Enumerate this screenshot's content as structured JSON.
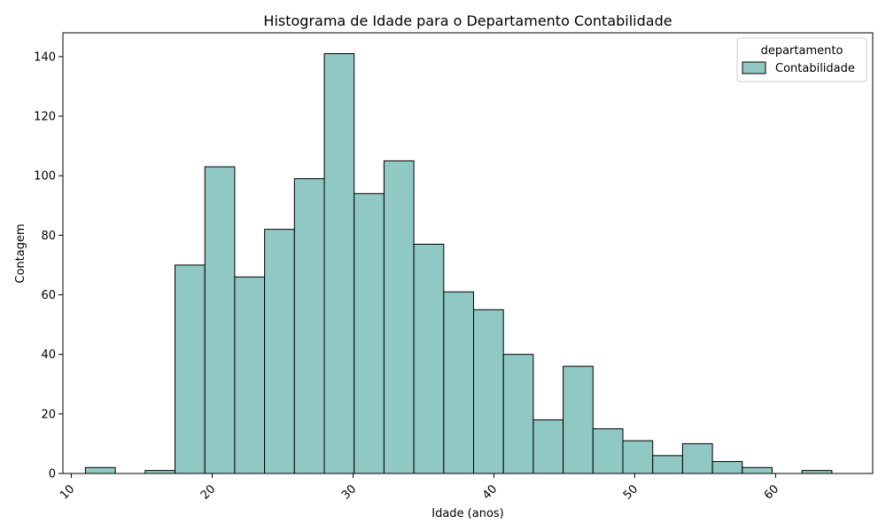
{
  "chart_data": {
    "type": "bar",
    "title": "Histograma de Idade para o Departamento Contabilidade",
    "xlabel": "Idade (anos)",
    "ylabel": "Contagem",
    "xlim": [
      9.4,
      66.9
    ],
    "ylim": [
      0,
      148
    ],
    "x_ticks": [
      10,
      20,
      30,
      40,
      50,
      60
    ],
    "y_ticks": [
      0,
      20,
      40,
      60,
      80,
      100,
      120,
      140
    ],
    "x_tick_rotation": 45,
    "grid": false,
    "legend": {
      "title": "departamento",
      "entries": [
        "Contabilidade"
      ],
      "position": "top-right"
    },
    "colors": {
      "bar_fill": "#90c8c4",
      "bar_edge": "#000000",
      "axis": "#000000"
    },
    "bins": [
      {
        "start": 11.0,
        "end": 13.12,
        "count": 2
      },
      {
        "start": 13.12,
        "end": 15.24,
        "count": 0
      },
      {
        "start": 15.24,
        "end": 17.36,
        "count": 1
      },
      {
        "start": 17.36,
        "end": 19.48,
        "count": 70
      },
      {
        "start": 19.48,
        "end": 21.6,
        "count": 103
      },
      {
        "start": 21.6,
        "end": 23.72,
        "count": 66
      },
      {
        "start": 23.72,
        "end": 25.84,
        "count": 82
      },
      {
        "start": 25.84,
        "end": 27.96,
        "count": 99
      },
      {
        "start": 27.96,
        "end": 30.08,
        "count": 141
      },
      {
        "start": 30.08,
        "end": 32.2,
        "count": 94
      },
      {
        "start": 32.2,
        "end": 34.32,
        "count": 105
      },
      {
        "start": 34.32,
        "end": 36.44,
        "count": 77
      },
      {
        "start": 36.44,
        "end": 38.56,
        "count": 61
      },
      {
        "start": 38.56,
        "end": 40.68,
        "count": 55
      },
      {
        "start": 40.68,
        "end": 42.8,
        "count": 40
      },
      {
        "start": 42.8,
        "end": 44.92,
        "count": 18
      },
      {
        "start": 44.92,
        "end": 47.04,
        "count": 36
      },
      {
        "start": 47.04,
        "end": 49.16,
        "count": 15
      },
      {
        "start": 49.16,
        "end": 51.28,
        "count": 11
      },
      {
        "start": 51.28,
        "end": 53.4,
        "count": 6
      },
      {
        "start": 53.4,
        "end": 55.52,
        "count": 10
      },
      {
        "start": 55.52,
        "end": 57.64,
        "count": 4
      },
      {
        "start": 57.64,
        "end": 59.76,
        "count": 2
      },
      {
        "start": 59.76,
        "end": 61.88,
        "count": 0
      },
      {
        "start": 61.88,
        "end": 64.0,
        "count": 1
      }
    ]
  }
}
